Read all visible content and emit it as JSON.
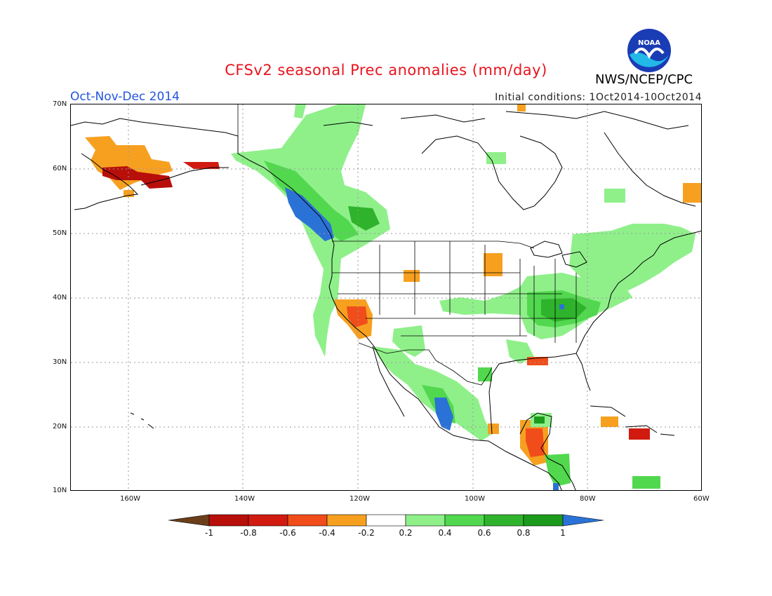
{
  "header": {
    "title": "CFSv2 seasonal Prec anomalies (mm/day)",
    "period": "Oct-Nov-Dec 2014",
    "initial_conditions": "Initial conditions: 1Oct2014-10Oct2014",
    "agency": "NWS/NCEP/CPC",
    "logo_text": "NOAA"
  },
  "map": {
    "lon_range": [
      -170,
      -60
    ],
    "lat_range": [
      10,
      70
    ],
    "lon_labels": [
      "160W",
      "140W",
      "120W",
      "100W",
      "80W",
      "60W"
    ],
    "lat_labels": [
      "70N",
      "60N",
      "50N",
      "40N",
      "30N",
      "20N",
      "10N"
    ],
    "gridlines": "dotted"
  },
  "colorbar": {
    "ticks": [
      "-1",
      "-0.8",
      "-0.6",
      "-0.4",
      "-0.2",
      "0.2",
      "0.4",
      "0.6",
      "0.8",
      "1"
    ],
    "colors": [
      "#6b3e1a",
      "#b80f0a",
      "#d11b10",
      "#f04d1a",
      "#f7a020",
      "#ffffff",
      "#8ff08a",
      "#52d84f",
      "#2fb32c",
      "#1c9a1c",
      "#2b72d7"
    ]
  },
  "anomaly_regions": [
    {
      "name": "alaska-southwest",
      "level": -0.4,
      "color": "#f7a020"
    },
    {
      "name": "alaska-peninsula",
      "level": -0.8,
      "color": "#b80f0a"
    },
    {
      "name": "pacific-northwest-coast",
      "level": 1.0,
      "color": "#2b72d7"
    },
    {
      "name": "british-columbia-interior",
      "level": 0.4,
      "color": "#52d84f"
    },
    {
      "name": "california-southern",
      "level": -0.6,
      "color": "#f04d1a"
    },
    {
      "name": "ohio-valley",
      "level": 0.6,
      "color": "#2fb32c"
    },
    {
      "name": "western-mexico",
      "level": 1.0,
      "color": "#2b72d7"
    },
    {
      "name": "central-america",
      "level": -0.6,
      "color": "#f04d1a"
    },
    {
      "name": "hispaniola",
      "level": -0.8,
      "color": "#b80f0a"
    }
  ]
}
